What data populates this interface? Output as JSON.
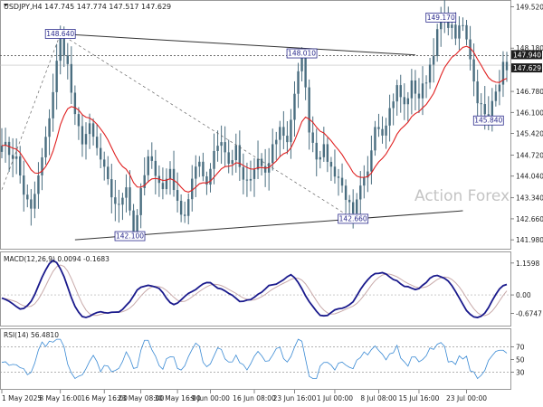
{
  "header": {
    "symbol_line": "USDJPY,H4  147.745 147.774 147.517 147.629",
    "watermark": "Action Forex"
  },
  "chart_data": [
    {
      "type": "candlestick",
      "name": "price",
      "y_ticks": [
        "149.520",
        "148.180",
        "146.780",
        "146.100",
        "145.420",
        "144.720",
        "144.040",
        "143.340",
        "142.660",
        "141.980"
      ],
      "y_tick_values": [
        149.52,
        148.18,
        146.78,
        146.1,
        145.42,
        144.72,
        144.04,
        143.34,
        142.66,
        141.98
      ],
      "ylim": [
        141.78,
        149.62
      ],
      "dashed_levels": [
        147.94
      ],
      "current_price_labels": [
        "147.940",
        "147.629"
      ],
      "price_labels": [
        {
          "text": "148.640",
          "t": 16,
          "y": 148.64
        },
        {
          "text": "148.010",
          "t": 82,
          "y": 148.01
        },
        {
          "text": "149.170",
          "t": 120,
          "y": 149.17
        },
        {
          "text": "145.840",
          "t": 133,
          "y": 145.84
        },
        {
          "text": "142.100",
          "t": 35,
          "y": 142.1
        },
        {
          "text": "142.660",
          "t": 96,
          "y": 142.66
        }
      ],
      "trendlines": [
        {
          "style": "solid",
          "from": {
            "t": 16,
            "y": 148.64
          },
          "to": {
            "t": 113,
            "y": 147.96
          }
        },
        {
          "style": "solid",
          "from": {
            "t": 20,
            "y": 141.98
          },
          "to": {
            "t": 126,
            "y": 142.92
          }
        },
        {
          "style": "dashed",
          "from": {
            "t": 0,
            "y": 143.6
          },
          "to": {
            "t": 16,
            "y": 148.64
          }
        },
        {
          "style": "dashed",
          "from": {
            "t": 16,
            "y": 148.64
          },
          "to": {
            "t": 96,
            "y": 142.66
          }
        }
      ],
      "anchors": [
        [
          0,
          145.2
        ],
        [
          2,
          144.8
        ],
        [
          4,
          144.6
        ],
        [
          6,
          143.5
        ],
        [
          8,
          142.9
        ],
        [
          10,
          144.0
        ],
        [
          12,
          145.2
        ],
        [
          14,
          146.8
        ],
        [
          16,
          148.6
        ],
        [
          18,
          147.6
        ],
        [
          20,
          145.9
        ],
        [
          22,
          145.2
        ],
        [
          24,
          145.6
        ],
        [
          26,
          144.9
        ],
        [
          28,
          144.2
        ],
        [
          30,
          143.4
        ],
        [
          32,
          143.0
        ],
        [
          34,
          143.8
        ],
        [
          36,
          142.2
        ],
        [
          38,
          143.5
        ],
        [
          40,
          144.6
        ],
        [
          42,
          144.2
        ],
        [
          44,
          143.6
        ],
        [
          46,
          144.3
        ],
        [
          48,
          143.1
        ],
        [
          50,
          142.8
        ],
        [
          52,
          143.9
        ],
        [
          54,
          144.5
        ],
        [
          56,
          143.8
        ],
        [
          58,
          144.9
        ],
        [
          60,
          145.2
        ],
        [
          62,
          144.4
        ],
        [
          64,
          144.9
        ],
        [
          66,
          143.8
        ],
        [
          68,
          143.9
        ],
        [
          70,
          144.6
        ],
        [
          72,
          144.0
        ],
        [
          74,
          145.0
        ],
        [
          76,
          145.6
        ],
        [
          78,
          145.2
        ],
        [
          80,
          146.6
        ],
        [
          82,
          148.0
        ],
        [
          84,
          145.6
        ],
        [
          86,
          144.7
        ],
        [
          88,
          144.9
        ],
        [
          90,
          144.3
        ],
        [
          92,
          144.0
        ],
        [
          94,
          143.4
        ],
        [
          96,
          142.7
        ],
        [
          98,
          143.6
        ],
        [
          100,
          144.1
        ],
        [
          102,
          145.8
        ],
        [
          104,
          145.5
        ],
        [
          106,
          146.2
        ],
        [
          108,
          146.9
        ],
        [
          110,
          146.3
        ],
        [
          112,
          147.0
        ],
        [
          114,
          146.6
        ],
        [
          116,
          147.2
        ],
        [
          118,
          148.1
        ],
        [
          120,
          149.2
        ],
        [
          122,
          149.0
        ],
        [
          124,
          148.6
        ],
        [
          126,
          148.9
        ],
        [
          128,
          147.9
        ],
        [
          130,
          146.5
        ],
        [
          132,
          146.2
        ],
        [
          133,
          145.9
        ],
        [
          134,
          146.4
        ],
        [
          136,
          147.0
        ],
        [
          137,
          147.9
        ],
        [
          138,
          147.6
        ]
      ]
    },
    {
      "type": "line",
      "name": "macd",
      "label": "MACD(12,26,9) 0.0094 -0.1683",
      "y_ticks": [
        "1.1598",
        "0.00",
        "-0.6747"
      ],
      "y_tick_values": [
        1.1598,
        0.0,
        -0.6747
      ],
      "ylim": [
        -1.05,
        1.45
      ],
      "zero_line_label": "0.00"
    },
    {
      "type": "line",
      "name": "rsi",
      "label": "RSI(14) 56.4810",
      "y_ticks": [
        "70",
        "50",
        "30"
      ],
      "y_tick_values": [
        70,
        50,
        30
      ],
      "ylim": [
        5,
        95
      ]
    }
  ],
  "x_axis": {
    "labels": [
      {
        "t": 0,
        "text": "1 May 2025"
      },
      {
        "t": 16,
        "text": "8 May 16:00"
      },
      {
        "t": 28,
        "text": "16 May 16:00"
      },
      {
        "t": 38,
        "text": "23 May 08:00"
      },
      {
        "t": 48,
        "text": "30 May 16:00"
      },
      {
        "t": 57,
        "text": "9 Jun 00:00"
      },
      {
        "t": 69,
        "text": "16 Jun 08:00"
      },
      {
        "t": 80,
        "text": "23 Jun 16:00"
      },
      {
        "t": 91,
        "text": "1 Jul 00:00"
      },
      {
        "t": 103,
        "text": "8 Jul 08:00"
      },
      {
        "t": 114,
        "text": "15 Jul 16:00"
      },
      {
        "t": 127,
        "text": "23 Jul 00:00"
      }
    ],
    "tmax": 138
  },
  "colors": {
    "candle": "#4a6e80",
    "ma": "#e02020",
    "macd_line": "#1a1a8c",
    "macd_signal": "#c8aaaa",
    "rsi_line": "#3a8ad4",
    "label_border": "#2a2a8c",
    "current_price_bg": "#202020"
  }
}
